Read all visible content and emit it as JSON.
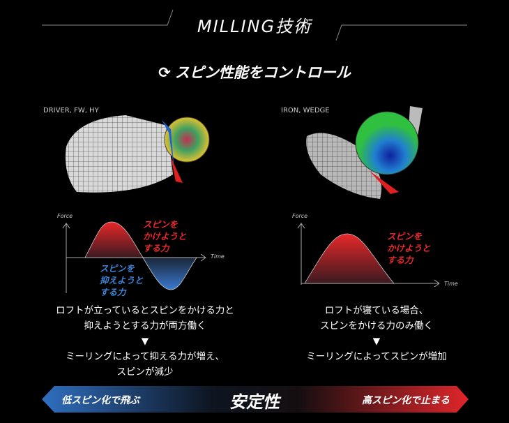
{
  "title": "MILLING技術",
  "subtitle": "スピン性能をコントロール",
  "subtitle_icon": "rotate-icon",
  "left": {
    "label": "DRIVER, FW, HY",
    "axis_y": "Force",
    "axis_x": "Time",
    "pos_label": [
      "スピンを",
      "かけようと",
      "する力"
    ],
    "neg_label": [
      "スピンを",
      "抑えようと",
      "する力"
    ],
    "desc1": [
      "ロフトが立っているとスピンをかける力と",
      "抑えようとする力が両方働く"
    ],
    "arrow": "▼",
    "desc2": [
      "ミーリングによって抑える力が増え、",
      "スピンが減少"
    ]
  },
  "right": {
    "label": "IRON, WEDGE",
    "axis_y": "Force",
    "axis_x": "Time",
    "pos_label": [
      "スピンを",
      "かけようと",
      "する力"
    ],
    "desc1": [
      "ロフトが寝ている場合、",
      "スピンをかける力のみ働く"
    ],
    "arrow": "▼",
    "desc2": [
      "ミーリングによってスピンが増加"
    ]
  },
  "bar": {
    "left": "低スピン化で飛ぶ",
    "center": "安定性",
    "right": "高スピン化で止まる",
    "left_color": "#2f6fc0",
    "right_color": "#e0262a"
  }
}
